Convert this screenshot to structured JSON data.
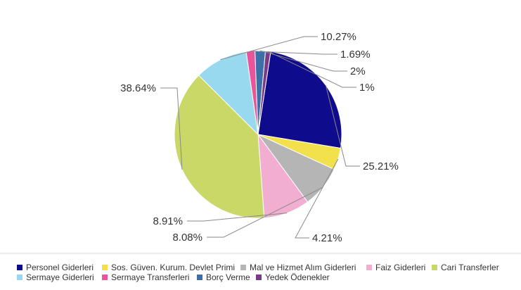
{
  "chart_data": {
    "type": "pie",
    "slices": [
      {
        "name": "Personel Giderleri",
        "value": 25.21,
        "label": "25.21%",
        "color": "#0e0b8c"
      },
      {
        "name": "Sos. Güven. Kurum. Devlet Primi",
        "value": 4.21,
        "label": "4.21%",
        "color": "#f2e14d"
      },
      {
        "name": "Mal ve Hizmet Alım Giderleri",
        "value": 8.08,
        "label": "8.08%",
        "color": "#b5b5b5"
      },
      {
        "name": "Faiz Giderleri",
        "value": 8.91,
        "label": "8.91%",
        "color": "#f2aed0"
      },
      {
        "name": "Cari Transferler",
        "value": 38.64,
        "label": "38.64%",
        "color": "#c9d866"
      },
      {
        "name": "Sermaye Giderleri",
        "value": 10.27,
        "label": "10.27%",
        "color": "#99d9f0"
      },
      {
        "name": "Sermaye Transferleri",
        "value": 1.69,
        "label": "1.69%",
        "color": "#e8559a"
      },
      {
        "name": "Borç Verme",
        "value": 2,
        "label": "2%",
        "color": "#3c6ea8"
      },
      {
        "name": "Yedek Ödenekler",
        "value": 1,
        "label": "1%",
        "color": "#7a3a8c"
      }
    ],
    "legend": {
      "position": "bottom",
      "rows": [
        [
          "Personel Giderleri",
          "Sos. Güven. Kurum. Devlet Primi",
          "Mal ve Hizmet Alım Giderleri",
          "Faiz Giderleri",
          "Cari Transferler"
        ],
        [
          "Sermaye Giderleri",
          "Sermaye Transferleri",
          "Borç Verme",
          "Yedek Ödenekler"
        ]
      ]
    }
  }
}
